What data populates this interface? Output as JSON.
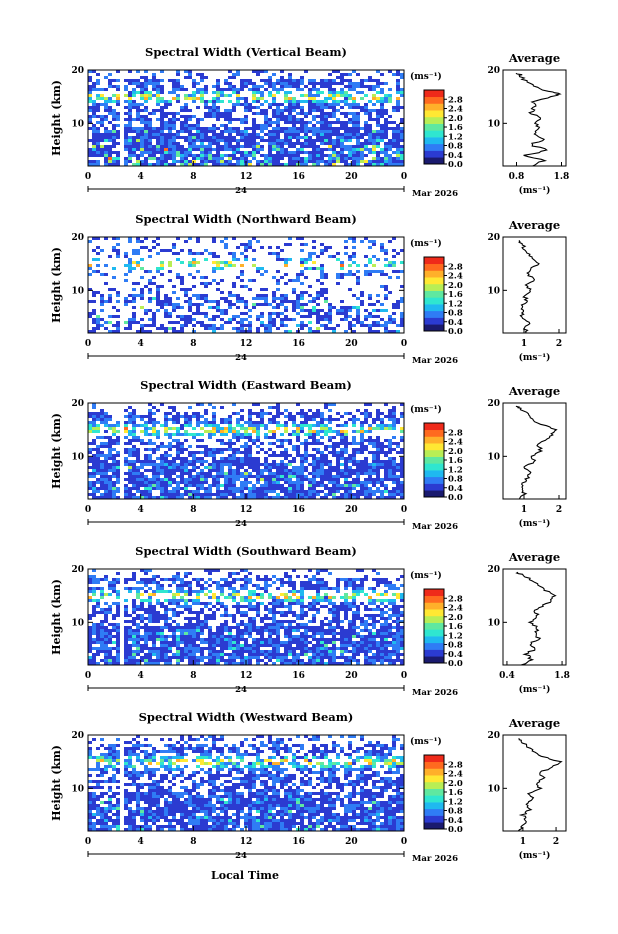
{
  "figure": {
    "xlabel": "Local Time",
    "colors": [
      "#1a1a6e",
      "#2b3bd1",
      "#2f7cf5",
      "#1fb9f0",
      "#2fe6d0",
      "#5fe8a0",
      "#b8ee55",
      "#ffe833",
      "#ffb02a",
      "#ff6a1f",
      "#ef2a1a"
    ]
  },
  "chart_data": [
    {
      "type": "heatmap",
      "title": "Spectral Width (Vertical Beam)",
      "ylabel": "Height (km)",
      "x_ticks": [
        "0",
        "4",
        "8",
        "12",
        "16",
        "20",
        "0"
      ],
      "y_ticks": [
        "20",
        "10"
      ],
      "xlim": [
        0,
        24
      ],
      "ylim": [
        2,
        20
      ],
      "date_tick": "24",
      "date_label": "Mar 2026",
      "colorbar": {
        "unit": "(ms⁻¹)",
        "labels": [
          "2.8",
          "2.4",
          "2.0",
          "1.6",
          "1.2",
          "0.8",
          "0.4",
          "0.0"
        ],
        "range": [
          0,
          3.2
        ]
      },
      "profile": {
        "title": "Average",
        "xlabel": "(ms⁻¹)",
        "x_ticks": [
          "0.8",
          "1.8"
        ],
        "xlim": [
          0.5,
          1.9
        ],
        "y_ticks": [
          "20",
          "10"
        ],
        "heights": [
          2.0,
          3.0,
          4.0,
          5.0,
          6.0,
          7.0,
          8.0,
          9.0,
          10.0,
          11.0,
          12.0,
          13.0,
          14.0,
          15.0,
          15.5,
          16.0,
          17.0,
          18.0,
          19.0,
          19.5
        ],
        "values": [
          1.2,
          1.4,
          1.0,
          1.5,
          1.1,
          1.4,
          1.2,
          1.3,
          1.2,
          1.3,
          1.1,
          1.2,
          1.2,
          1.6,
          1.75,
          1.5,
          1.2,
          1.0,
          0.9,
          0.8
        ]
      }
    },
    {
      "type": "heatmap",
      "title": "Spectral Width (Northward Beam)",
      "ylabel": "Height (km)",
      "x_ticks": [
        "0",
        "4",
        "8",
        "12",
        "16",
        "20",
        "0"
      ],
      "y_ticks": [
        "20",
        "10"
      ],
      "xlim": [
        0,
        24
      ],
      "ylim": [
        2,
        20
      ],
      "date_tick": "24",
      "date_label": "Mar 2026",
      "colorbar": {
        "unit": "(ms⁻¹)",
        "labels": [
          "2.8",
          "2.4",
          "2.0",
          "1.6",
          "1.2",
          "0.8",
          "0.4",
          "0.0"
        ],
        "range": [
          0,
          3.2
        ]
      },
      "profile": {
        "title": "Average",
        "xlabel": "(ms⁻¹)",
        "x_ticks": [
          "1",
          "2"
        ],
        "xlim": [
          0.4,
          2.2
        ],
        "y_ticks": [
          "20",
          "10"
        ],
        "heights": [
          2.0,
          3.0,
          4.0,
          5.0,
          6.0,
          7.0,
          8.0,
          9.0,
          10.0,
          11.0,
          12.0,
          13.0,
          14.0,
          15.0,
          16.0,
          17.0,
          18.0,
          19.0,
          19.5
        ],
        "values": [
          1.1,
          1.0,
          1.2,
          0.9,
          1.0,
          0.9,
          1.1,
          1.0,
          1.2,
          1.0,
          1.3,
          1.1,
          1.2,
          1.4,
          1.2,
          1.1,
          1.0,
          0.9,
          0.8
        ]
      }
    },
    {
      "type": "heatmap",
      "title": "Spectral Width (Eastward Beam)",
      "ylabel": "Height (km)",
      "x_ticks": [
        "0",
        "4",
        "8",
        "12",
        "16",
        "20",
        "0"
      ],
      "y_ticks": [
        "20",
        "10"
      ],
      "xlim": [
        0,
        24
      ],
      "ylim": [
        2,
        20
      ],
      "date_tick": "24",
      "date_label": "Mar 2026",
      "colorbar": {
        "unit": "(ms⁻¹)",
        "labels": [
          "2.8",
          "2.4",
          "2.0",
          "1.6",
          "1.2",
          "0.8",
          "0.4",
          "0.0"
        ],
        "range": [
          0,
          3.2
        ]
      },
      "profile": {
        "title": "Average",
        "xlabel": "(ms⁻¹)",
        "x_ticks": [
          "1",
          "2"
        ],
        "xlim": [
          0.4,
          2.2
        ],
        "y_ticks": [
          "20",
          "10"
        ],
        "heights": [
          2.0,
          3.0,
          4.0,
          5.0,
          6.0,
          7.0,
          8.0,
          9.0,
          10.0,
          11.0,
          12.0,
          13.0,
          14.0,
          15.0,
          16.0,
          17.0,
          18.0,
          19.0,
          19.5
        ],
        "values": [
          0.9,
          1.0,
          0.9,
          1.0,
          1.1,
          1.2,
          1.0,
          1.3,
          1.2,
          1.5,
          1.4,
          1.6,
          1.8,
          1.9,
          1.5,
          1.2,
          1.1,
          0.9,
          0.8
        ]
      }
    },
    {
      "type": "heatmap",
      "title": "Spectral Width (Southward Beam)",
      "ylabel": "Height (km)",
      "x_ticks": [
        "0",
        "4",
        "8",
        "12",
        "16",
        "20",
        "0"
      ],
      "y_ticks": [
        "20",
        "10"
      ],
      "xlim": [
        0,
        24
      ],
      "ylim": [
        2,
        20
      ],
      "date_tick": "24",
      "date_label": "Mar 2026",
      "colorbar": {
        "unit": "(ms⁻¹)",
        "labels": [
          "2.8",
          "2.4",
          "2.0",
          "1.6",
          "1.2",
          "0.8",
          "0.4",
          "0.0"
        ],
        "range": [
          0,
          3.2
        ]
      },
      "profile": {
        "title": "Average",
        "xlabel": "(ms⁻¹)",
        "x_ticks": [
          "0.4",
          "1.8"
        ],
        "xlim": [
          0.3,
          1.9
        ],
        "y_ticks": [
          "20",
          "10"
        ],
        "heights": [
          2.0,
          3.0,
          4.0,
          5.0,
          6.0,
          7.0,
          8.0,
          9.0,
          10.0,
          11.0,
          12.0,
          13.0,
          14.0,
          15.0,
          16.0,
          17.0,
          18.0,
          19.0,
          19.5
        ],
        "values": [
          0.8,
          1.0,
          0.9,
          1.1,
          1.0,
          1.2,
          1.1,
          1.2,
          1.0,
          1.2,
          1.1,
          1.3,
          1.5,
          1.6,
          1.4,
          1.2,
          1.0,
          0.8,
          0.6
        ]
      }
    },
    {
      "type": "heatmap",
      "title": "Spectral Width (Westward Beam)",
      "ylabel": "Height (km)",
      "x_ticks": [
        "0",
        "4",
        "8",
        "12",
        "16",
        "20",
        "0"
      ],
      "y_ticks": [
        "20",
        "10"
      ],
      "xlim": [
        0,
        24
      ],
      "ylim": [
        2,
        20
      ],
      "date_tick": "24",
      "date_label": "Mar 2026",
      "colorbar": {
        "unit": "(ms⁻¹)",
        "labels": [
          "2.8",
          "2.4",
          "2.0",
          "1.6",
          "1.2",
          "0.8",
          "0.4",
          "0.0"
        ],
        "range": [
          0,
          3.2
        ]
      },
      "profile": {
        "title": "Average",
        "xlabel": "(ms⁻¹)",
        "x_ticks": [
          "1",
          "2"
        ],
        "xlim": [
          0.4,
          2.3
        ],
        "y_ticks": [
          "20",
          "10"
        ],
        "heights": [
          2.0,
          3.0,
          4.0,
          5.0,
          6.0,
          7.0,
          8.0,
          9.0,
          10.0,
          11.0,
          12.0,
          13.0,
          14.0,
          15.0,
          16.0,
          17.0,
          18.0,
          19.0,
          19.5
        ],
        "values": [
          0.9,
          1.0,
          1.1,
          1.0,
          1.2,
          1.1,
          1.3,
          1.2,
          1.5,
          1.4,
          1.6,
          1.5,
          1.9,
          2.1,
          1.6,
          1.3,
          1.1,
          0.9,
          0.8
        ]
      }
    }
  ]
}
